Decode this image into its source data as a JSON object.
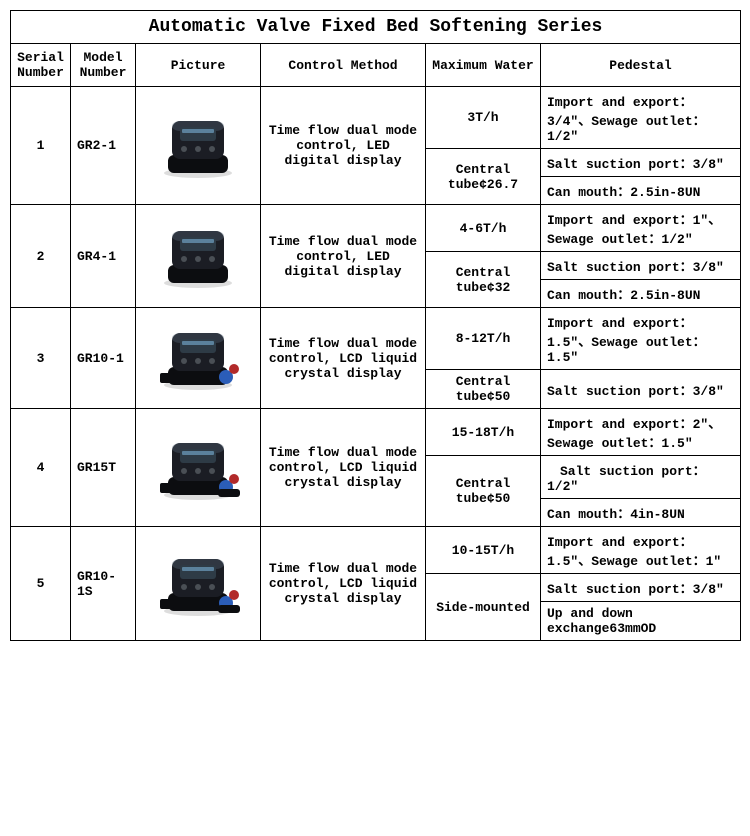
{
  "title": "Automatic Valve Fixed Bed Softening Series",
  "headers": [
    "Serial Number",
    "Model Number",
    "Picture",
    "Control Method",
    "Maximum Water",
    "Pedestal"
  ],
  "rows": [
    {
      "serial": "1",
      "model": "GR2-1",
      "control": "Time flow dual mode control, LED digital display",
      "water": [
        "3T/h",
        "Central tube¢26.7"
      ],
      "pedestal": [
        "Import and export：3/4″、Sewage outlet：1/2″",
        "Salt suction port：3/8″",
        "Can mouth：2.5in-8UN"
      ]
    },
    {
      "serial": "2",
      "model": "GR4-1",
      "control": "Time flow dual mode control, LED digital display",
      "water": [
        "4-6T/h",
        "Central tube¢32"
      ],
      "pedestal": [
        "Import and export：1″、Sewage outlet：1/2″",
        "Salt suction port：3/8″",
        "Can mouth：2.5in-8UN"
      ]
    },
    {
      "serial": "3",
      "model": "GR10-1",
      "control": "Time flow dual mode control, LCD liquid crystal display",
      "water": [
        "8-12T/h",
        "Central tube¢50"
      ],
      "pedestal": [
        "Import and export：1.5″、Sewage outlet：1.5″",
        "Salt suction port：3/8″"
      ]
    },
    {
      "serial": "4",
      "model": "GR15T",
      "control": "Time flow dual mode control, LCD liquid crystal display",
      "water": [
        "15-18T/h",
        "Central tube¢50"
      ],
      "pedestal": [
        "Import and export：2″、Sewage outlet：1.5″",
        "　Salt suction port：1/2″",
        "Can mouth：4in-8UN"
      ]
    },
    {
      "serial": "5",
      "model": "GR10-1S",
      "control": "Time flow dual mode control, LCD liquid crystal display",
      "water": [
        "10-15T/h",
        "Side-mounted"
      ],
      "pedestal": [
        "Import and export：1.5″、Sewage outlet：1″",
        "Salt suction port：3/8″",
        "Up and down exchange63mmOD"
      ]
    }
  ],
  "picture": {
    "body_color": "#1b1d24",
    "screen_color": "#2e3b46",
    "highlight": "#5a6a7a",
    "base_color": "#0c0d10",
    "blue": "#2b5db8",
    "red": "#b22a2a"
  }
}
